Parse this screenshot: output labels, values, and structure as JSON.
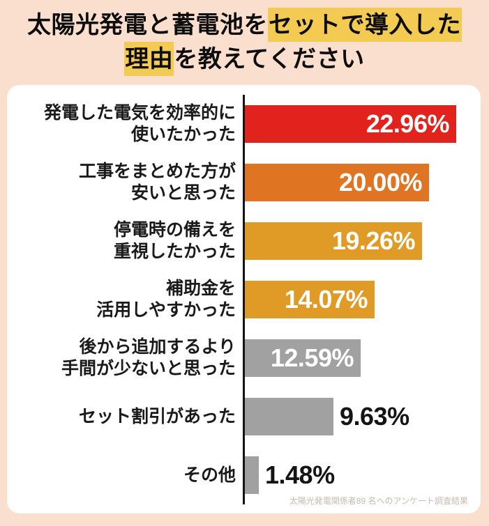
{
  "title": {
    "line1_plain": "太陽光発電と蓄電池を",
    "line1_highlight": "セットで導入した",
    "line2_highlight": "理由",
    "line2_plain": "を教えてください"
  },
  "chart_data": {
    "type": "bar",
    "orientation": "horizontal",
    "unit": "%",
    "title": "太陽光発電と蓄電池をセットで導入した理由を教えてください",
    "axis_color": "#141414",
    "scale_max_value": 22.96,
    "categories": [
      "発電した電気を効率的に使いたかった",
      "工事をまとめた方が安いと思った",
      "停電時の備えを重視したかった",
      "補助金を活用しやすかった",
      "後から追加するより手間が少ないと思った",
      "セット割引があった",
      "その他"
    ],
    "values": [
      22.96,
      20.0,
      19.26,
      14.07,
      12.59,
      9.63,
      1.48
    ],
    "items": [
      {
        "label": "発電した電気を効率的に\n使いたかった",
        "value": 22.96,
        "display": "22.96%",
        "color": "#E2231D",
        "value_position": "inside"
      },
      {
        "label": "工事をまとめた方が\n安いと思った",
        "value": 20.0,
        "display": "20.00%",
        "color": "#DF7522",
        "value_position": "inside"
      },
      {
        "label": "停電時の備えを\n重視したかった",
        "value": 19.26,
        "display": "19.26%",
        "color": "#DF9B26",
        "value_position": "inside"
      },
      {
        "label": "補助金を\n活用しやすかった",
        "value": 14.07,
        "display": "14.07%",
        "color": "#DF9B26",
        "value_position": "inside"
      },
      {
        "label": "後から追加するより\n手間が少ないと思った",
        "value": 12.59,
        "display": "12.59%",
        "color": "#A1A1A1",
        "value_position": "inside"
      },
      {
        "label": "セット割引があった",
        "value": 9.63,
        "display": "9.63%",
        "color": "#A1A1A1",
        "value_position": "outside"
      },
      {
        "label": "その他",
        "value": 1.48,
        "display": "1.48%",
        "color": "#A1A1A1",
        "value_position": "outside"
      }
    ]
  },
  "footer": {
    "note": "太陽光発電関係者89 名へのアンケート調査結果"
  },
  "colors": {
    "background": "#FBDFCE",
    "card": "#FFFFFF",
    "highlight": "#F3CB52",
    "bar_red": "#E2231D",
    "bar_orange": "#DF7522",
    "bar_gold": "#DF9B26",
    "bar_gray": "#A1A1A1",
    "text": "#1A1A1A",
    "footer_text": "#C6BAB2"
  }
}
